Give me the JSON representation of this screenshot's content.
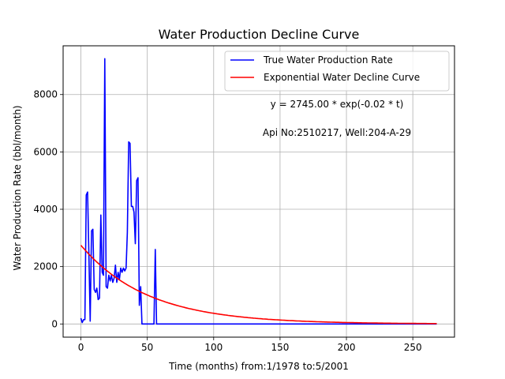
{
  "chart_data": {
    "type": "line",
    "title": "Water Production Decline Curve",
    "xlabel": "Time (months) from:1/1978 to:5/2001",
    "ylabel": "Water Production Rate (bbl/month)",
    "xlim": [
      -13.4,
      281.4
    ],
    "ylim": [
      -460,
      9700
    ],
    "xticks": [
      0,
      50,
      100,
      150,
      200,
      250
    ],
    "yticks": [
      0,
      2000,
      4000,
      6000,
      8000
    ],
    "grid": true,
    "legend_position": "top-right",
    "annotations": [
      "y = 2745.00 * exp(-0.02 * t)",
      "Api No:2510217, Well:204-A-29"
    ],
    "series": [
      {
        "name": "True Water Production Rate",
        "color": "#0000ff",
        "x": [
          0,
          1,
          2,
          3,
          4,
          5,
          6,
          7,
          8,
          9,
          10,
          11,
          12,
          13,
          14,
          15,
          16,
          17,
          18,
          19,
          20,
          21,
          22,
          23,
          24,
          25,
          26,
          27,
          28,
          29,
          30,
          31,
          32,
          33,
          34,
          35,
          36,
          37,
          38,
          39,
          40,
          41,
          42,
          43,
          44,
          45,
          46,
          47,
          48,
          49,
          50,
          51,
          52,
          53,
          54,
          55,
          56,
          57,
          58,
          59,
          60,
          268
        ],
        "y": [
          200,
          50,
          150,
          150,
          4500,
          4600,
          2500,
          100,
          3250,
          3300,
          1200,
          1100,
          1250,
          850,
          900,
          3800,
          1800,
          1700,
          9250,
          1300,
          1250,
          1700,
          1500,
          1700,
          1450,
          1600,
          2050,
          1450,
          1800,
          1550,
          1950,
          1800,
          1950,
          1850,
          1950,
          3200,
          6350,
          6300,
          4100,
          4100,
          3900,
          2800,
          5000,
          5100,
          650,
          1300,
          0,
          0,
          0,
          0,
          0,
          0,
          0,
          0,
          0,
          0,
          2600,
          0,
          0,
          0,
          0,
          0
        ]
      },
      {
        "name": "Exponential Water Decline Curve",
        "color": "#ff0000",
        "a": 2745.0,
        "b": -0.02,
        "x_range": [
          0,
          268
        ]
      }
    ]
  }
}
